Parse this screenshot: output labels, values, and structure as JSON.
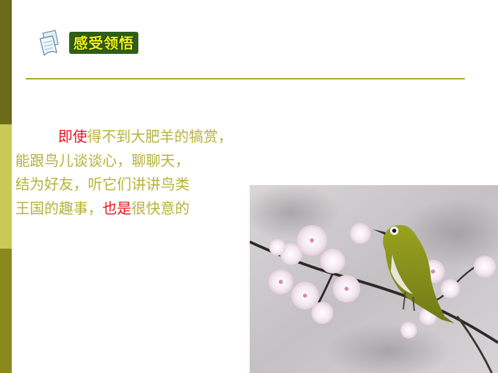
{
  "header": {
    "title": "感受领悟",
    "icon": "document-pages-icon"
  },
  "poem": {
    "line1": {
      "highlight": "即使",
      "rest": "得不到大肥羊的犒赏，"
    },
    "line2": "能跟鸟儿谈谈心，聊聊天，",
    "line3": "结为好友，听它们讲讲鸟类",
    "line4": {
      "before": "王国的趣事，",
      "highlight": "也是",
      "after": "很快意的"
    }
  },
  "colors": {
    "text": "#b5b23a",
    "highlight": "#e8141b",
    "rule": "#a7a32a",
    "strip_dark": "#6b6b1a",
    "strip_light": "#c9c957"
  },
  "photo": {
    "subject": "white-eye bird on cherry blossom branch"
  }
}
